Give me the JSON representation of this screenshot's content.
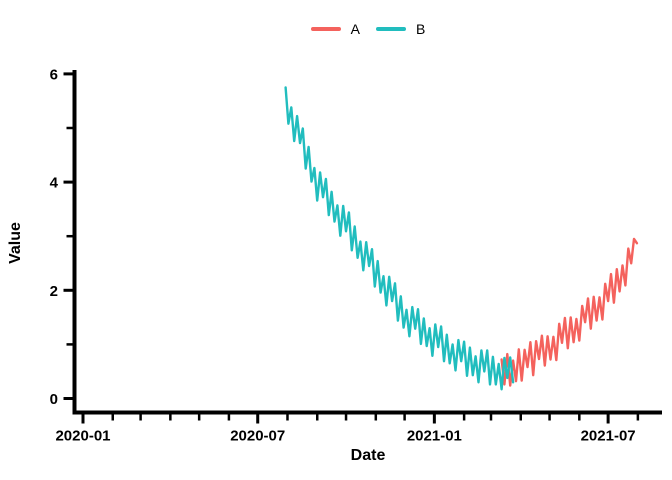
{
  "chart_data": {
    "type": "line",
    "title": "",
    "xlabel": "Date",
    "ylabel": "Value",
    "background": "#ffffff",
    "axis_color": "#000000",
    "grid": false,
    "legend": {
      "position": "top-center",
      "entries": [
        "A",
        "B"
      ]
    },
    "x_axis": {
      "major_ticks": [
        "2020-01",
        "2020-07",
        "2021-01",
        "2021-07"
      ],
      "minor_ticks": [
        "2020-02",
        "2020-03",
        "2020-04",
        "2020-05",
        "2020-06",
        "2020-08",
        "2020-09",
        "2020-10",
        "2020-11",
        "2020-12",
        "2021-02",
        "2021-03",
        "2021-04",
        "2021-05",
        "2021-06",
        "2021-08"
      ],
      "range": [
        "2019-12-27",
        "2021-08-26"
      ]
    },
    "y_axis": {
      "major_ticks": [
        0,
        2,
        4,
        6
      ],
      "minor_ticks": [
        1,
        3,
        5
      ],
      "range": [
        0,
        6
      ]
    },
    "series": [
      {
        "name": "A",
        "color": "#F4625D",
        "start_date": "2021-03-12",
        "step_days": 3,
        "values": [
          0.72,
          0.26,
          0.82,
          0.24,
          0.7,
          0.32,
          0.91,
          0.33,
          0.9,
          0.58,
          1.04,
          0.43,
          1.06,
          0.73,
          1.16,
          0.61,
          1.15,
          0.72,
          1.14,
          0.71,
          1.38,
          1.03,
          1.49,
          0.93,
          1.5,
          1.04,
          1.47,
          1.07,
          1.71,
          1.41,
          1.85,
          1.29,
          1.88,
          1.44,
          1.87,
          1.46,
          2.12,
          1.8,
          2.3,
          1.77,
          2.39,
          1.98,
          2.46,
          2.09,
          2.77,
          2.5,
          2.95,
          2.87
        ]
      },
      {
        "name": "B",
        "color": "#21BDBE",
        "start_date": "2020-07-30",
        "step_days": 3,
        "values": [
          5.75,
          5.08,
          5.38,
          4.76,
          5.22,
          4.72,
          4.99,
          4.25,
          4.65,
          4.01,
          4.26,
          3.66,
          4.18,
          3.72,
          4.06,
          3.39,
          3.82,
          3.27,
          3.57,
          3.01,
          3.56,
          3.09,
          3.44,
          2.74,
          3.18,
          2.6,
          2.9,
          2.37,
          2.89,
          2.45,
          2.76,
          2.07,
          2.54,
          1.96,
          2.26,
          1.72,
          2.25,
          1.8,
          2.13,
          1.44,
          1.89,
          1.31,
          1.64,
          1.15,
          1.69,
          1.29,
          1.65,
          1.01,
          1.48,
          0.97,
          1.3,
          0.79,
          1.37,
          0.95,
          1.33,
          0.69,
          1.18,
          0.65,
          1.0,
          0.52,
          1.08,
          0.69,
          1.05,
          0.42,
          0.94,
          0.43,
          0.78,
          0.3,
          0.89,
          0.5,
          0.89,
          0.26,
          0.77,
          0.26,
          0.64,
          0.17,
          0.75,
          0.38,
          0.76,
          0.3
        ]
      }
    ]
  }
}
